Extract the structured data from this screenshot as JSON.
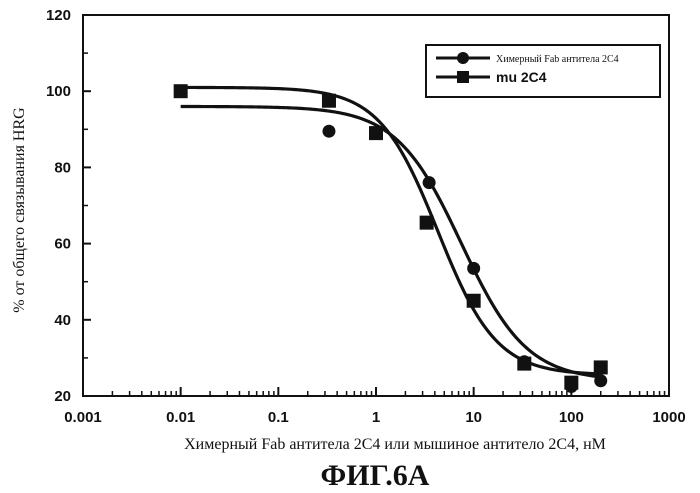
{
  "figure_label": "ФИГ.6А",
  "chart_data": {
    "type": "scatter",
    "xscale": "log",
    "xlim": [
      0.001,
      1000
    ],
    "ylim": [
      20,
      120
    ],
    "xlabel": "Химерный Fab антитела 2C4 или мышиное антитело 2C4, нМ",
    "ylabel": "% от общего связывания HRG",
    "xticks": [
      "0.001",
      "0.01",
      "0.1",
      "1",
      "10",
      "100",
      "1000"
    ],
    "yticks": [
      "20",
      "40",
      "60",
      "80",
      "100",
      "120"
    ],
    "legend_position": "top-right",
    "series": [
      {
        "name": "Химерный Fab антитела 2C4",
        "marker": "circle",
        "points": [
          {
            "x": 0.33,
            "y": 89.5
          },
          {
            "x": 1.0,
            "y": 89.0
          },
          {
            "x": 3.5,
            "y": 76.0
          },
          {
            "x": 10,
            "y": 53.5
          },
          {
            "x": 33,
            "y": 29.0
          },
          {
            "x": 100,
            "y": 22.5
          },
          {
            "x": 200,
            "y": 24.0
          }
        ],
        "fit": {
          "top": 96,
          "bottom": 24,
          "ec50": 7.5,
          "hill": 1.3
        }
      },
      {
        "name": "mu 2C4",
        "marker": "square",
        "points": [
          {
            "x": 0.01,
            "y": 100.0
          },
          {
            "x": 0.33,
            "y": 97.5
          },
          {
            "x": 1.0,
            "y": 89.0
          },
          {
            "x": 3.3,
            "y": 65.5
          },
          {
            "x": 10,
            "y": 45.0
          },
          {
            "x": 33,
            "y": 28.5
          },
          {
            "x": 100,
            "y": 23.5
          },
          {
            "x": 200,
            "y": 27.5
          }
        ],
        "fit": {
          "top": 101,
          "bottom": 25.5,
          "ec50": 4.3,
          "hill": 1.45
        }
      }
    ]
  }
}
